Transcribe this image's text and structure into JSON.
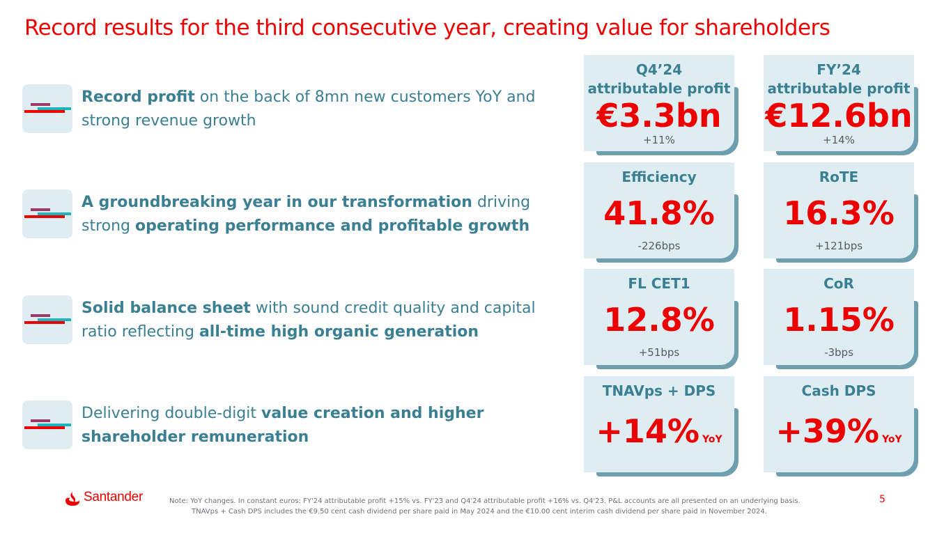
{
  "title": "Record results for the third consecutive year, creating value for shareholders",
  "bullets": [
    {
      "parts": [
        {
          "t": "Record profit",
          "b": true
        },
        {
          "t": " on the back of 8mn new customers YoY and strong revenue growth",
          "b": false
        }
      ]
    },
    {
      "parts": [
        {
          "t": "A groundbreaking year in our transformation",
          "b": true
        },
        {
          "t": " driving strong ",
          "b": false
        },
        {
          "t": "operating performance and profitable growth",
          "b": true
        }
      ]
    },
    {
      "parts": [
        {
          "t": "Solid balance sheet",
          "b": true
        },
        {
          "t": " with sound credit quality and capital ratio reflecting ",
          "b": false
        },
        {
          "t": "all-time high organic generation",
          "b": true
        }
      ]
    },
    {
      "parts": [
        {
          "t": "Delivering double-digit ",
          "b": false
        },
        {
          "t": "value creation and higher shareholder remuneration",
          "b": true
        }
      ]
    }
  ],
  "cards": {
    "q4_profit": {
      "label_line1": "Q4’24",
      "label_line2": "attributable profit",
      "value": "€3.3bn",
      "change": "+11%"
    },
    "fy_profit": {
      "label_line1": "FY’24",
      "label_line2": "attributable profit",
      "value": "€12.6bn",
      "change": "+14%"
    },
    "efficiency": {
      "label": "Efficiency",
      "value": "41.8%",
      "change": "-226bps"
    },
    "rote": {
      "label": "RoTE",
      "value": "16.3%",
      "change": "+121bps"
    },
    "cet1": {
      "label": "FL CET1",
      "value": "12.8%",
      "change": "+51bps"
    },
    "cor": {
      "label": "CoR",
      "value": "1.15%",
      "change": "-3bps"
    },
    "tnav": {
      "label": "TNAVps + DPS",
      "value": "+14%",
      "suffix": "YoY"
    },
    "cashdps": {
      "label": "Cash DPS",
      "value": "+39%",
      "suffix": "YoY"
    }
  },
  "footer": {
    "brand": "Santander",
    "note_line1": "Note: YoY changes. In constant euros: FY'24 attributable profit +15% vs. FY'23 and Q4'24 attributable profit +16% vs. Q4'23. P&L accounts are all presented on an underlying basis.",
    "note_line2": "TNAVps + Cash DPS includes the €9.50 cent cash dividend per share paid in May 2024 and the €10.00 cent interim cash dividend per share paid in November 2024.",
    "page": "5"
  },
  "colors": {
    "brand_red": "#ec0000",
    "teal_text": "#3b7f93",
    "card_bg": "#deedf2",
    "card_shadow": "#6e9faf"
  }
}
